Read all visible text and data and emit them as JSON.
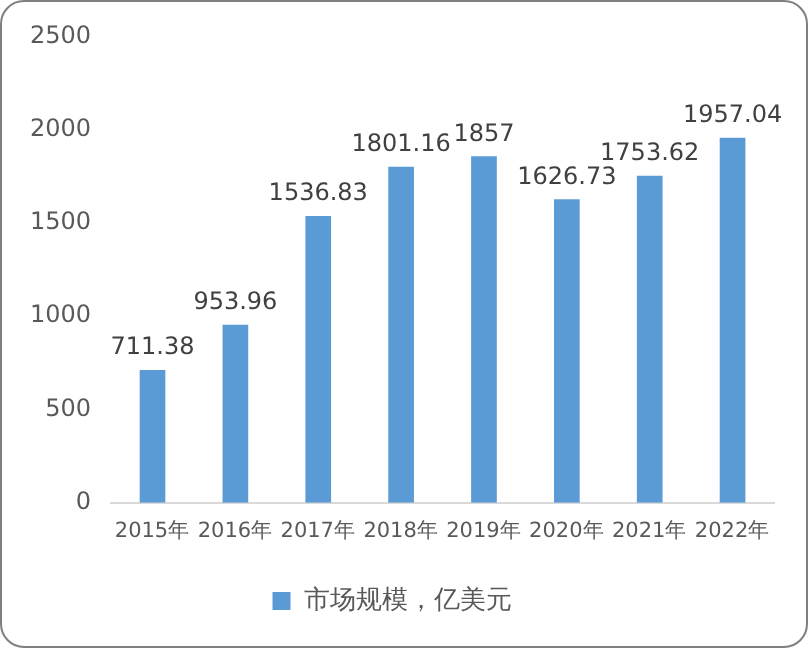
{
  "chart_data": {
    "type": "bar",
    "categories": [
      "2015年",
      "2016年",
      "2017年",
      "2018年",
      "2019年",
      "2020年",
      "2021年",
      "2022年"
    ],
    "series": [
      {
        "name": "市场规模，亿美元",
        "color": "#5b9bd5",
        "values": [
          711.38,
          953.96,
          1536.83,
          1801.16,
          1857,
          1626.73,
          1753.62,
          1957.04
        ]
      }
    ],
    "ylim": [
      0,
      2500
    ],
    "yticks": [
      0,
      500,
      1000,
      1500,
      2000,
      2500
    ],
    "grid": false,
    "legend": "bottom",
    "data_labels": true
  }
}
